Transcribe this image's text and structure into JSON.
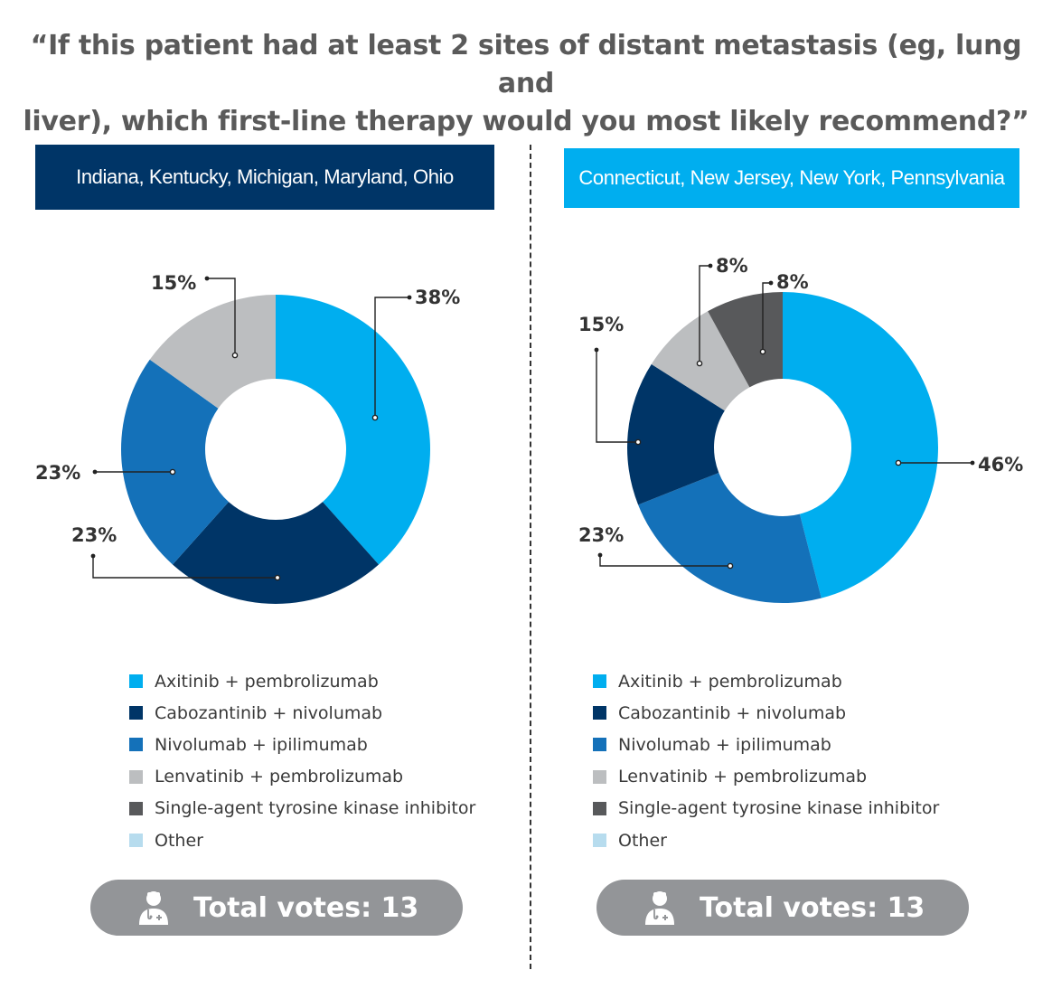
{
  "title": {
    "line1": "“If this patient had at least 2 sites of distant metastasis (eg, lung and",
    "line2": "liver), which first-line therapy would you most likely recommend?”"
  },
  "colors": {
    "axitinib": "#00aeef",
    "cabozantinib": "#003567",
    "nivolumab": "#1471b9",
    "lenvatinib": "#bcbec0",
    "single_agent": "#58595b",
    "other": "#b7dcee",
    "left_banner": "#003567",
    "right_banner": "#00aeef",
    "votes_pill": "#939598"
  },
  "legend": [
    {
      "label": "Axitinib + pembrolizumab",
      "color_key": "axitinib"
    },
    {
      "label": "Cabozantinib + nivolumab",
      "color_key": "cabozantinib"
    },
    {
      "label": "Nivolumab + ipilimumab",
      "color_key": "nivolumab"
    },
    {
      "label": "Lenvatinib + pembrolizumab",
      "color_key": "lenvatinib"
    },
    {
      "label": "Single-agent tyrosine kinase inhibitor",
      "color_key": "single_agent"
    },
    {
      "label": "Other",
      "color_key": "other"
    }
  ],
  "chart_data": [
    {
      "type": "pie",
      "variant": "donut",
      "title": "Indiana, Kentucky, Michigan, Maryland, Ohio",
      "categories": [
        "Axitinib + pembrolizumab",
        "Cabozantinib + nivolumab",
        "Nivolumab + ipilimumab",
        "Lenvatinib + pembrolizumab",
        "Single-agent tyrosine kinase inhibitor",
        "Other"
      ],
      "values": [
        38,
        23,
        23,
        15,
        0,
        0
      ],
      "data_labels": [
        "38%",
        "23%",
        "23%",
        "15%",
        "",
        ""
      ],
      "total_votes_label": "Total votes: 13"
    },
    {
      "type": "pie",
      "variant": "donut",
      "title": "Connecticut, New Jersey, New York, Pennsylvania",
      "categories": [
        "Axitinib + pembrolizumab",
        "Cabozantinib + nivolumab",
        "Nivolumab + ipilimumab",
        "Lenvatinib + pembrolizumab",
        "Single-agent tyrosine kinase inhibitor",
        "Other"
      ],
      "values": [
        46,
        15,
        23,
        8,
        8,
        0
      ],
      "data_labels": [
        "46%",
        "15%",
        "23%",
        "8%",
        "8%",
        ""
      ],
      "total_votes_label": "Total votes: 13"
    }
  ]
}
